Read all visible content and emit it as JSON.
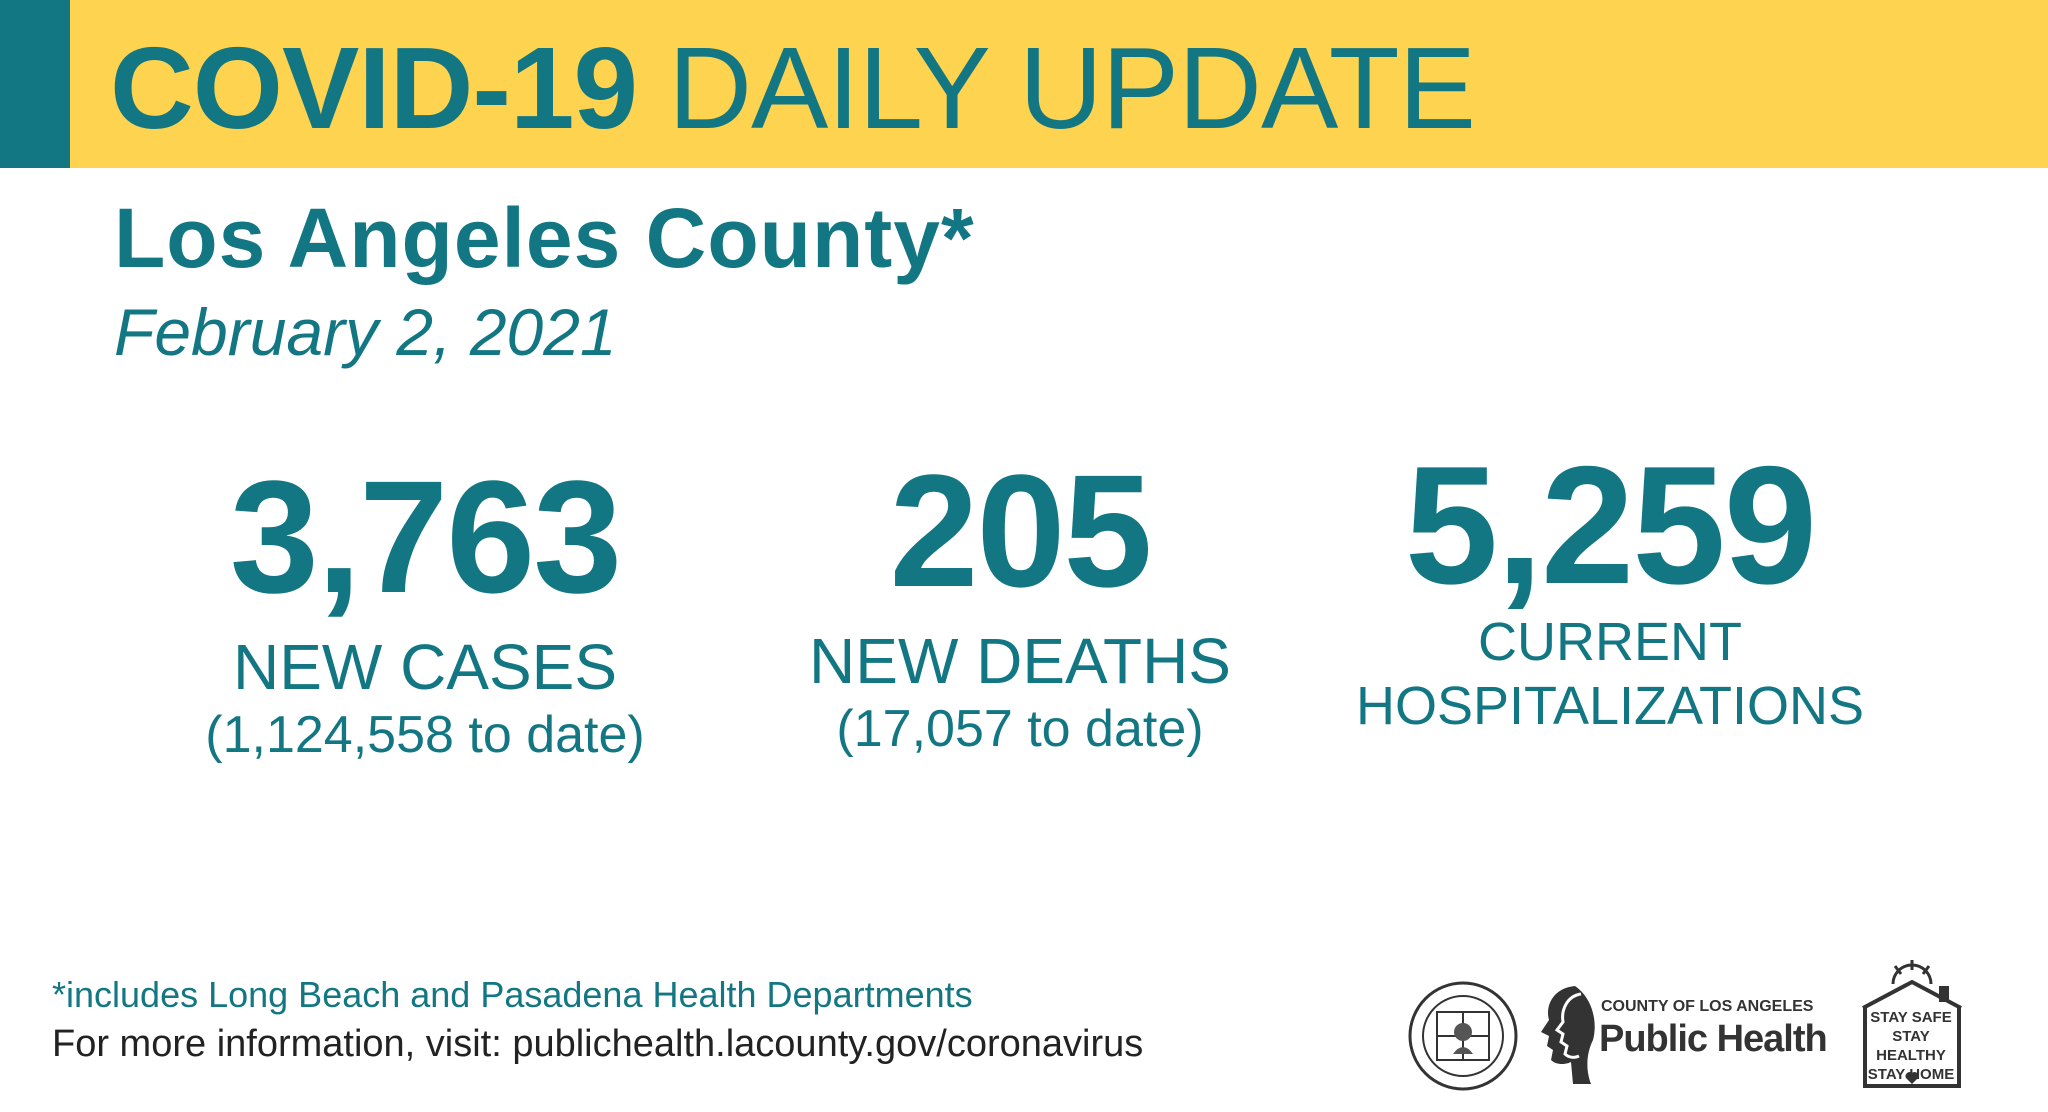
{
  "header": {
    "title_bold": "COVID-19",
    "title_rest": " DAILY UPDATE"
  },
  "county": "Los Angeles County*",
  "date": "February 2, 2021",
  "stats": {
    "cases": {
      "value": "3,763",
      "label": "NEW CASES",
      "to_date": "(1,124,558 to date)"
    },
    "deaths": {
      "value": "205",
      "label": "NEW DEATHS",
      "to_date": "(17,057 to date)"
    },
    "hospitalizations": {
      "value": "5,259",
      "label_line1": "CURRENT",
      "label_line2": "HOSPITALIZATIONS"
    }
  },
  "footer": {
    "footnote": "*includes Long Beach and Pasadena Health Departments",
    "more_info": "For more information, visit: publichealth.lacounty.gov/coronavirus"
  },
  "logos": {
    "seal_icon": "county-seal-icon",
    "public_health_small": "COUNTY OF LOS ANGELES",
    "public_health_big": "Public Health",
    "stay_line1": "STAY SAFE",
    "stay_line2": "STAY HEALTHY",
    "stay_line3": "STAY HOME"
  },
  "colors": {
    "teal": "#137783",
    "yellow": "#FDD34F"
  }
}
